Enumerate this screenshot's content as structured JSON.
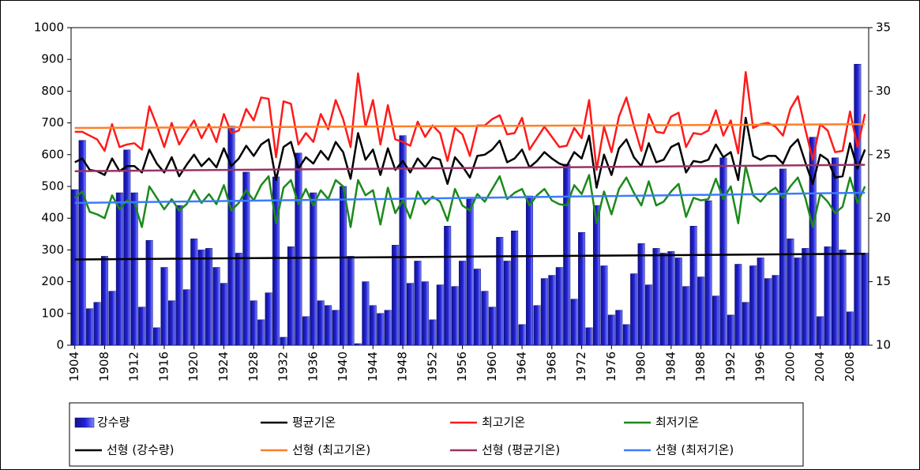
{
  "chart_data": {
    "type": "combo",
    "categories": [
      "1904",
      null,
      null,
      null,
      "1908",
      null,
      null,
      null,
      "1912",
      null,
      null,
      null,
      "1916",
      null,
      null,
      null,
      "1920",
      null,
      null,
      null,
      "1924",
      null,
      null,
      null,
      "1928",
      null,
      null,
      null,
      "1932",
      null,
      null,
      null,
      "1936",
      null,
      null,
      null,
      "1940",
      null,
      null,
      null,
      "1944",
      null,
      null,
      null,
      "1948",
      null,
      null,
      null,
      "1952",
      null,
      null,
      null,
      "1956",
      null,
      null,
      null,
      "1960",
      null,
      null,
      null,
      "1964",
      null,
      null,
      null,
      "1968",
      null,
      null,
      null,
      "1972",
      null,
      null,
      null,
      "1976",
      null,
      null,
      null,
      "1980",
      null,
      null,
      null,
      "1984",
      null,
      null,
      null,
      "1988",
      null,
      null,
      null,
      "1992",
      null,
      null,
      null,
      "1996",
      null,
      null,
      null,
      "2000",
      null,
      null,
      null,
      "2004",
      null,
      null,
      null,
      "2008",
      null,
      null
    ],
    "series": [
      {
        "name": "강수량",
        "type": "bar",
        "color": "#2424d6",
        "values": [
          490,
          645,
          115,
          135,
          280,
          170,
          480,
          615,
          480,
          120,
          330,
          55,
          245,
          140,
          440,
          175,
          335,
          300,
          305,
          245,
          195,
          690,
          290,
          545,
          140,
          80,
          165,
          530,
          25,
          310,
          605,
          90,
          480,
          140,
          125,
          110,
          500,
          280,
          5,
          200,
          125,
          100,
          110,
          315,
          660,
          195,
          265,
          200,
          80,
          190,
          375,
          185,
          265,
          460,
          240,
          170,
          120,
          340,
          265,
          360,
          65,
          470,
          125,
          210,
          220,
          245,
          570,
          145,
          355,
          55,
          440,
          250,
          95,
          110,
          65,
          225,
          320,
          190,
          305,
          290,
          295,
          275,
          185,
          375,
          215,
          455,
          155,
          590,
          95,
          255,
          135,
          250,
          275,
          210,
          220,
          555,
          335,
          275,
          305,
          655,
          90,
          310,
          590,
          300,
          105,
          885,
          290
        ]
      },
      {
        "name": "평균기온",
        "type": "line",
        "axis": "y2",
        "color": "#000000",
        "values": [
          24.4,
          24.7,
          23.8,
          23.7,
          23.4,
          24.7,
          23.7,
          24.1,
          24.1,
          23.6,
          25.4,
          24.3,
          23.6,
          24.8,
          23.3,
          24.2,
          25.0,
          24.1,
          24.7,
          24.0,
          25.5,
          24.1,
          24.7,
          25.7,
          24.9,
          25.8,
          26.2,
          23.0,
          25.6,
          26.0,
          23.9,
          24.8,
          24.3,
          25.3,
          24.6,
          26.0,
          25.2,
          23.1,
          26.7,
          24.6,
          25.4,
          23.4,
          25.5,
          23.8,
          24.5,
          23.6,
          24.7,
          24.0,
          24.8,
          24.6,
          22.7,
          24.8,
          24.1,
          23.2,
          24.9,
          25.0,
          25.4,
          26.1,
          24.4,
          24.7,
          25.4,
          24.0,
          24.5,
          25.2,
          24.7,
          24.3,
          24.1,
          25.2,
          24.7,
          26.5,
          22.4,
          25.0,
          23.4,
          25.5,
          26.2,
          24.8,
          24.1,
          25.9,
          24.4,
          24.6,
          25.6,
          25.9,
          23.6,
          24.5,
          24.4,
          24.6,
          25.8,
          24.8,
          25.2,
          23.0,
          27.9,
          24.9,
          24.6,
          24.9,
          24.9,
          24.3,
          25.6,
          26.2,
          24.4,
          22.7,
          25.0,
          24.6,
          23.2,
          23.3,
          25.9,
          23.9,
          25.4
        ]
      },
      {
        "name": "최고기온",
        "type": "line",
        "axis": "y2",
        "color": "#ff1a1a",
        "values": [
          26.8,
          26.8,
          26.5,
          26.2,
          25.3,
          27.4,
          25.6,
          25.8,
          25.9,
          25.4,
          28.8,
          27.3,
          25.6,
          27.5,
          25.8,
          26.8,
          27.7,
          26.3,
          27.4,
          26.0,
          28.2,
          26.7,
          26.9,
          28.6,
          27.7,
          29.5,
          29.4,
          24.8,
          29.2,
          29.0,
          25.8,
          26.7,
          26.0,
          28.2,
          27.0,
          29.3,
          27.8,
          25.6,
          31.4,
          27.2,
          29.3,
          25.8,
          28.9,
          26.2,
          26.0,
          25.7,
          27.6,
          26.4,
          27.3,
          26.7,
          24.5,
          27.1,
          26.6,
          24.9,
          27.3,
          27.3,
          27.8,
          28.1,
          26.6,
          26.7,
          27.9,
          25.4,
          26.3,
          27.2,
          26.4,
          25.6,
          25.7,
          27.1,
          26.3,
          29.3,
          23.8,
          27.2,
          25.2,
          28.0,
          29.5,
          27.3,
          25.3,
          28.2,
          26.8,
          26.7,
          28.0,
          28.3,
          25.6,
          26.7,
          26.6,
          26.9,
          28.5,
          26.5,
          27.7,
          25.1,
          31.5,
          27.1,
          27.4,
          27.5,
          27.2,
          26.5,
          28.6,
          29.6,
          27.0,
          24.6,
          27.4,
          26.9,
          25.2,
          25.3,
          28.4,
          25.6,
          28.2
        ]
      },
      {
        "name": "최저기온",
        "type": "line",
        "axis": "y2",
        "color": "#1a8a1a",
        "values": [
          21.6,
          22.1,
          20.5,
          20.3,
          20.0,
          21.8,
          20.7,
          21.4,
          21.2,
          19.3,
          22.5,
          21.6,
          20.7,
          21.5,
          20.6,
          21.1,
          22.2,
          21.2,
          21.9,
          21.1,
          22.6,
          20.6,
          21.2,
          22.2,
          21.4,
          22.6,
          23.3,
          19.6,
          22.4,
          23.0,
          21.1,
          22.3,
          21.0,
          22.2,
          21.5,
          23.0,
          22.5,
          19.3,
          23.0,
          21.8,
          22.2,
          19.5,
          22.4,
          20.4,
          21.4,
          20.0,
          22.1,
          21.1,
          21.7,
          21.3,
          19.8,
          22.3,
          21.0,
          20.6,
          21.9,
          21.3,
          22.3,
          23.3,
          21.5,
          22.0,
          22.3,
          21.0,
          21.8,
          22.3,
          21.4,
          21.1,
          21.0,
          22.6,
          21.9,
          23.4,
          19.6,
          22.1,
          20.3,
          22.3,
          23.2,
          22.0,
          21.0,
          22.9,
          21.0,
          21.3,
          22.1,
          22.7,
          20.1,
          21.6,
          21.4,
          21.5,
          23.1,
          21.5,
          22.5,
          19.6,
          24.1,
          21.8,
          21.3,
          22.0,
          22.4,
          21.6,
          22.5,
          23.2,
          21.6,
          19.3,
          21.9,
          21.3,
          20.4,
          20.9,
          23.2,
          21.2,
          22.5
        ]
      }
    ],
    "trendlines": [
      {
        "name": "선형 (강수량)",
        "color": "#000000",
        "start": 270,
        "end": 288
      },
      {
        "name": "선형 (최고기온)",
        "color": "#ff7f27",
        "axis": "y2",
        "start": 27.1,
        "end": 27.4
      },
      {
        "name": "선형 (평균기온)",
        "color": "#993366",
        "axis": "y2",
        "start": 23.7,
        "end": 24.2
      },
      {
        "name": "선형 (최저기온)",
        "color": "#3b7bff",
        "axis": "y2",
        "start": 21.2,
        "end": 22.0
      }
    ],
    "ylim": [
      0,
      1000
    ],
    "yticks": [
      0,
      100,
      200,
      300,
      400,
      500,
      600,
      700,
      800,
      900,
      1000
    ],
    "y2lim": [
      10,
      35
    ],
    "y2ticks": [
      10,
      15,
      20,
      25,
      30,
      35
    ]
  }
}
